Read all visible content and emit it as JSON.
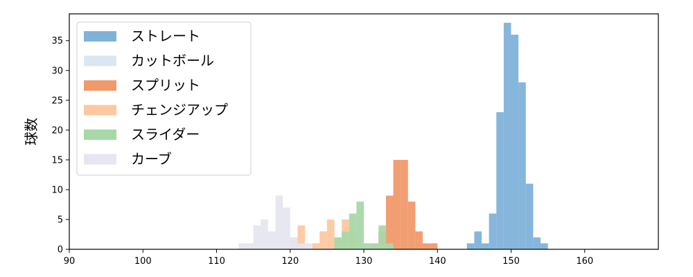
{
  "chart_data": {
    "type": "bar",
    "title": "",
    "xlabel": "",
    "ylabel": "球数",
    "xlim": [
      90,
      170
    ],
    "ylim": [
      0,
      39.5
    ],
    "xticks": [
      90,
      100,
      110,
      120,
      130,
      140,
      150,
      160
    ],
    "yticks": [
      0,
      5,
      10,
      15,
      20,
      25,
      30,
      35
    ],
    "grid": false,
    "legend_position": "top-left",
    "series": [
      {
        "name": "ストレート",
        "color": "#7fb2d9",
        "bins": [
          {
            "x0": 144.0,
            "x1": 145.0,
            "count": 1
          },
          {
            "x0": 145.0,
            "x1": 146.0,
            "count": 3
          },
          {
            "x0": 146.0,
            "x1": 147.0,
            "count": 1
          },
          {
            "x0": 147.0,
            "x1": 148.0,
            "count": 6
          },
          {
            "x0": 148.0,
            "x1": 149.0,
            "count": 23
          },
          {
            "x0": 149.0,
            "x1": 150.0,
            "count": 38
          },
          {
            "x0": 150.0,
            "x1": 151.0,
            "count": 36
          },
          {
            "x0": 151.0,
            "x1": 152.0,
            "count": 28
          },
          {
            "x0": 152.0,
            "x1": 153.0,
            "count": 11
          },
          {
            "x0": 153.0,
            "x1": 154.0,
            "count": 2
          },
          {
            "x0": 154.0,
            "x1": 155.0,
            "count": 1
          }
        ]
      },
      {
        "name": "カットボール",
        "color": "#dae7f3",
        "bins": [
          {
            "x0": 120.0,
            "x1": 121.0,
            "count": 2
          },
          {
            "x0": 121.0,
            "x1": 122.0,
            "count": 1
          }
        ]
      },
      {
        "name": "スプリット",
        "color": "#f0996b",
        "bins": [
          {
            "x0": 132.0,
            "x1": 133.0,
            "count": 3
          },
          {
            "x0": 133.0,
            "x1": 134.0,
            "count": 9
          },
          {
            "x0": 134.0,
            "x1": 135.0,
            "count": 15
          },
          {
            "x0": 135.0,
            "x1": 136.0,
            "count": 15
          },
          {
            "x0": 136.0,
            "x1": 137.0,
            "count": 8
          },
          {
            "x0": 137.0,
            "x1": 138.0,
            "count": 3
          },
          {
            "x0": 138.0,
            "x1": 139.0,
            "count": 1
          },
          {
            "x0": 139.0,
            "x1": 140.0,
            "count": 1
          }
        ]
      },
      {
        "name": "チェンジアップ",
        "color": "#fdc89f",
        "bins": [
          {
            "x0": 120.0,
            "x1": 121.0,
            "count": 2
          },
          {
            "x0": 121.0,
            "x1": 122.0,
            "count": 4
          },
          {
            "x0": 123.0,
            "x1": 124.0,
            "count": 1
          },
          {
            "x0": 124.0,
            "x1": 125.0,
            "count": 3
          },
          {
            "x0": 125.0,
            "x1": 126.0,
            "count": 5
          },
          {
            "x0": 126.0,
            "x1": 127.0,
            "count": 2
          },
          {
            "x0": 127.0,
            "x1": 128.0,
            "count": 5
          },
          {
            "x0": 128.0,
            "x1": 129.0,
            "count": 3
          },
          {
            "x0": 131.0,
            "x1": 132.0,
            "count": 1
          },
          {
            "x0": 132.0,
            "x1": 133.0,
            "count": 1
          }
        ]
      },
      {
        "name": "スライダー",
        "color": "#a8d8a8",
        "bins": [
          {
            "x0": 126.0,
            "x1": 127.0,
            "count": 2
          },
          {
            "x0": 127.0,
            "x1": 128.0,
            "count": 3
          },
          {
            "x0": 128.0,
            "x1": 129.0,
            "count": 6
          },
          {
            "x0": 129.0,
            "x1": 130.0,
            "count": 8
          },
          {
            "x0": 130.0,
            "x1": 131.0,
            "count": 1
          },
          {
            "x0": 131.0,
            "x1": 132.0,
            "count": 1
          },
          {
            "x0": 132.0,
            "x1": 133.0,
            "count": 4
          },
          {
            "x0": 133.0,
            "x1": 134.0,
            "count": 1
          }
        ]
      },
      {
        "name": "カーブ",
        "color": "#e6e6f0",
        "bins": [
          {
            "x0": 113.0,
            "x1": 114.0,
            "count": 1
          },
          {
            "x0": 114.0,
            "x1": 115.0,
            "count": 1
          },
          {
            "x0": 115.0,
            "x1": 116.0,
            "count": 4
          },
          {
            "x0": 116.0,
            "x1": 117.0,
            "count": 5
          },
          {
            "x0": 117.0,
            "x1": 118.0,
            "count": 3
          },
          {
            "x0": 118.0,
            "x1": 119.0,
            "count": 9
          },
          {
            "x0": 119.0,
            "x1": 120.0,
            "count": 7
          },
          {
            "x0": 120.0,
            "x1": 121.0,
            "count": 2
          },
          {
            "x0": 121.0,
            "x1": 122.0,
            "count": 1
          },
          {
            "x0": 122.0,
            "x1": 123.0,
            "count": 1
          }
        ]
      }
    ]
  }
}
